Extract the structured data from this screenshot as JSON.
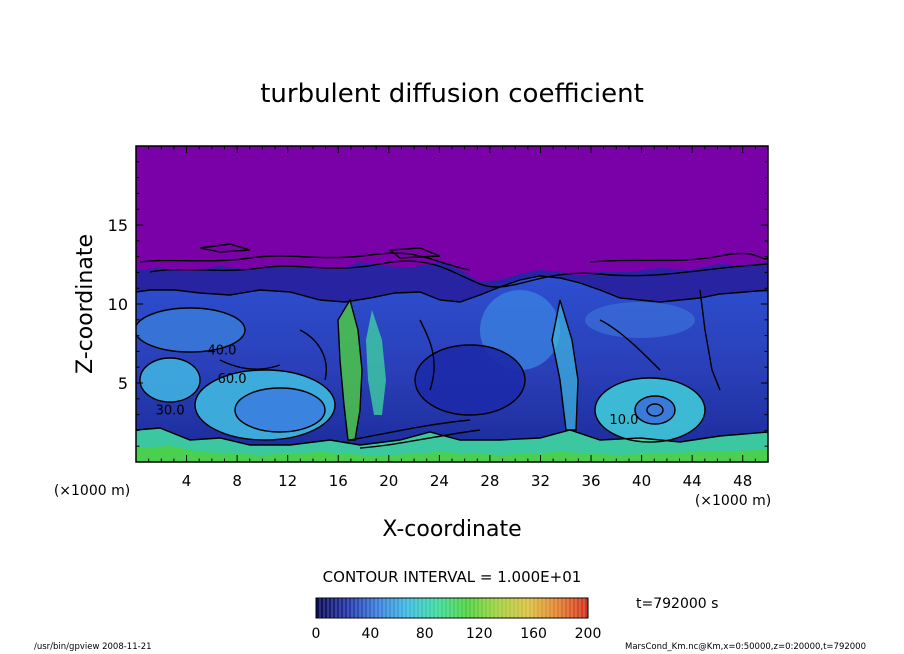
{
  "chart_data": {
    "type": "heatmap",
    "title": "turbulent diffusion coefficient",
    "xlabel": "X-coordinate",
    "ylabel": "Z-coordinate",
    "x_unit": "(×1000 m)",
    "y_unit": "(×1000 m)",
    "xlim": [
      0,
      50
    ],
    "ylim": [
      0,
      20
    ],
    "x_ticks": [
      4,
      8,
      12,
      16,
      20,
      24,
      28,
      32,
      36,
      40,
      44,
      48
    ],
    "y_ticks": [
      5,
      10,
      15
    ],
    "contour_interval_text": "CONTOUR INTERVAL = 1.000E+01",
    "contour_labels": [
      {
        "text": "40.0",
        "x": 6.8,
        "z": 6.8
      },
      {
        "text": "60.0",
        "x": 7.6,
        "z": 5.0
      },
      {
        "text": "30.0",
        "x": 2.7,
        "z": 3.0
      },
      {
        "text": "10.0",
        "x": 38.6,
        "z": 2.4
      }
    ],
    "colorbar": {
      "min": 0,
      "max": 200,
      "ticks": [
        0,
        40,
        80,
        120,
        160,
        200
      ],
      "colors": [
        "#0a0a50",
        "#2233a0",
        "#3a7ad8",
        "#3fb8e0",
        "#3fd8a0",
        "#4fd040",
        "#a0d040",
        "#d8c040",
        "#e08030",
        "#d03020"
      ]
    },
    "time_label": "t=792000 s",
    "regions": {
      "background_value_color": "#7a00a8",
      "boundary_layer_top_km": 12
    }
  },
  "footer": {
    "left": "/usr/bin/gpview   2008-11-21",
    "right": "MarsCond_Km.nc@Km,x=0:50000,z=0:20000,t=792000"
  }
}
